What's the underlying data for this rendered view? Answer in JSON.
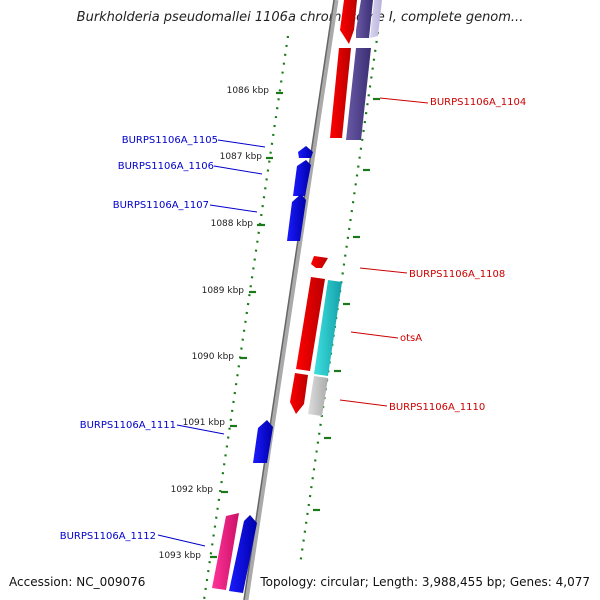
{
  "title": "Burkholderia pseudomallei 1106a chromosome I, complete genom...",
  "accession": "Accession: NC_009076",
  "summary": "Topology: circular; Length: 3,988,455 bp; Genes: 4,077",
  "colors": {
    "forward": "#ff0000",
    "forward_other": "#554488",
    "reverse": "#0000ee",
    "reverse_pink": "#ee1177",
    "rna_cyan": "#22c4c4",
    "label_forward": "#cc0000",
    "label_reverse": "#0000cc",
    "scale_dash": "#1a7a1a",
    "backbone": "#888888"
  },
  "scale_labels": [
    "1086 kbp",
    "1087 kbp",
    "1088 kbp",
    "1089 kbp",
    "1090 kbp",
    "1091 kbp",
    "1092 kbp",
    "1093 kbp"
  ],
  "gene_labels": [
    {
      "text": "BURPS1106A_1104",
      "strand": "forward"
    },
    {
      "text": "BURPS1106A_1105",
      "strand": "reverse"
    },
    {
      "text": "BURPS1106A_1106",
      "strand": "reverse"
    },
    {
      "text": "BURPS1106A_1107",
      "strand": "reverse"
    },
    {
      "text": "BURPS1106A_1108",
      "strand": "forward"
    },
    {
      "text": "otsA",
      "strand": "forward"
    },
    {
      "text": "BURPS1106A_1110",
      "strand": "forward"
    },
    {
      "text": "BURPS1106A_1111",
      "strand": "reverse"
    },
    {
      "text": "BURPS1106A_1112",
      "strand": "reverse"
    }
  ]
}
